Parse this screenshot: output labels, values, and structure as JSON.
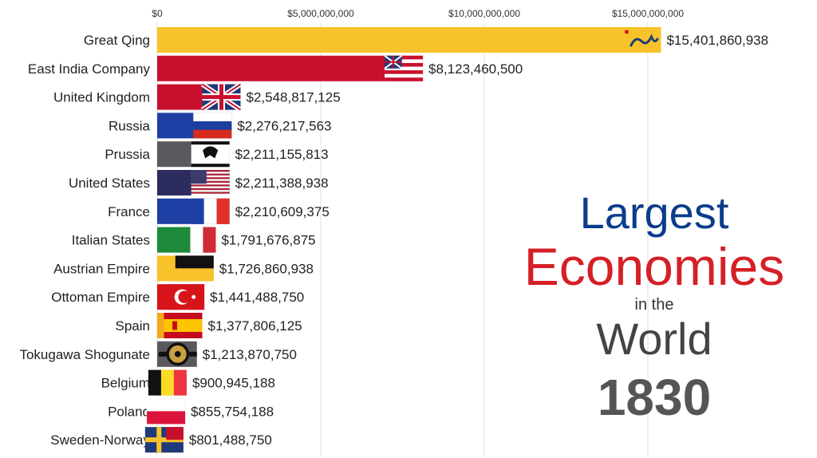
{
  "chart_data": {
    "type": "bar",
    "orientation": "horizontal",
    "xlim": [
      0,
      17000000000
    ],
    "x_ticks": [
      {
        "value": 0,
        "label": "$0"
      },
      {
        "value": 5000000000,
        "label": "$5,000,000,000"
      },
      {
        "value": 10000000000,
        "label": "$10,000,000,000"
      },
      {
        "value": 15000000000,
        "label": "$15,000,000,000"
      }
    ],
    "grid": true,
    "bars": [
      {
        "name": "Great Qing",
        "value": 15401860938,
        "label": "$15,401,860,938",
        "color": "#f8c22a",
        "flag": "qing-dragon-flag-icon"
      },
      {
        "name": "East India Company",
        "value": 8123460500,
        "label": "$8,123,460,500",
        "color": "#c8102e",
        "flag": "eic-flag-icon"
      },
      {
        "name": "United Kingdom",
        "value": 2548817125,
        "label": "$2,548,817,125",
        "color": "#c8102e",
        "flag": "union-jack-icon"
      },
      {
        "name": "Russia",
        "value": 2276217563,
        "label": "$2,276,217,563",
        "color": "#1e3fa3",
        "flag": "russia-flag-icon"
      },
      {
        "name": "Prussia",
        "value": 2211155813,
        "label": "$2,211,155,813",
        "color": "#5a5a5e",
        "flag": "prussia-flag-icon"
      },
      {
        "name": "United States",
        "value": 2211388938,
        "label": "$2,211,388,938",
        "color": "#2c2d5e",
        "flag": "us-flag-icon"
      },
      {
        "name": "France",
        "value": 2210609375,
        "label": "$2,210,609,375",
        "color": "#1e3fa3",
        "flag": "france-flag-icon"
      },
      {
        "name": "Italian States",
        "value": 1791676875,
        "label": "$1,791,676,875",
        "color": "#1e8a3a",
        "flag": "italy-flag-icon"
      },
      {
        "name": "Austrian Empire",
        "value": 1726860938,
        "label": "$1,726,860,938",
        "color": "#f8c22a",
        "flag": "austria-flag-icon"
      },
      {
        "name": "Ottoman Empire",
        "value": 1441488750,
        "label": "$1,441,488,750",
        "color": "#d7141a",
        "flag": "ottoman-flag-icon"
      },
      {
        "name": "Spain",
        "value": 1377806125,
        "label": "$1,377,806,125",
        "color": "#f5a81c",
        "flag": "spain-flag-icon"
      },
      {
        "name": "Tokugawa Shogunate",
        "value": 1213870750,
        "label": "$1,213,870,750",
        "color": "#5a5a5e",
        "flag": "tokugawa-crest-icon"
      },
      {
        "name": "Belgium",
        "value": 900945188,
        "label": "$900,945,188",
        "color": "#f8c22a",
        "flag": "belgium-flag-icon"
      },
      {
        "name": "Poland",
        "value": 855754188,
        "label": "$855,754,188",
        "color": "#d7141a",
        "flag": "poland-flag-icon"
      },
      {
        "name": "Sweden-Norway",
        "value": 801488750,
        "label": "$801,488,750",
        "color": "#f8c22a",
        "flag": "sweden-norway-flag-icon"
      }
    ]
  },
  "title": {
    "line1": "Largest",
    "line2": "Economies",
    "line3": "in the",
    "line4": "World",
    "year": "1830"
  },
  "colors": {
    "largest": "#0b3c8c",
    "economies": "#d61f26",
    "world": "#444444",
    "year": "#555555"
  }
}
